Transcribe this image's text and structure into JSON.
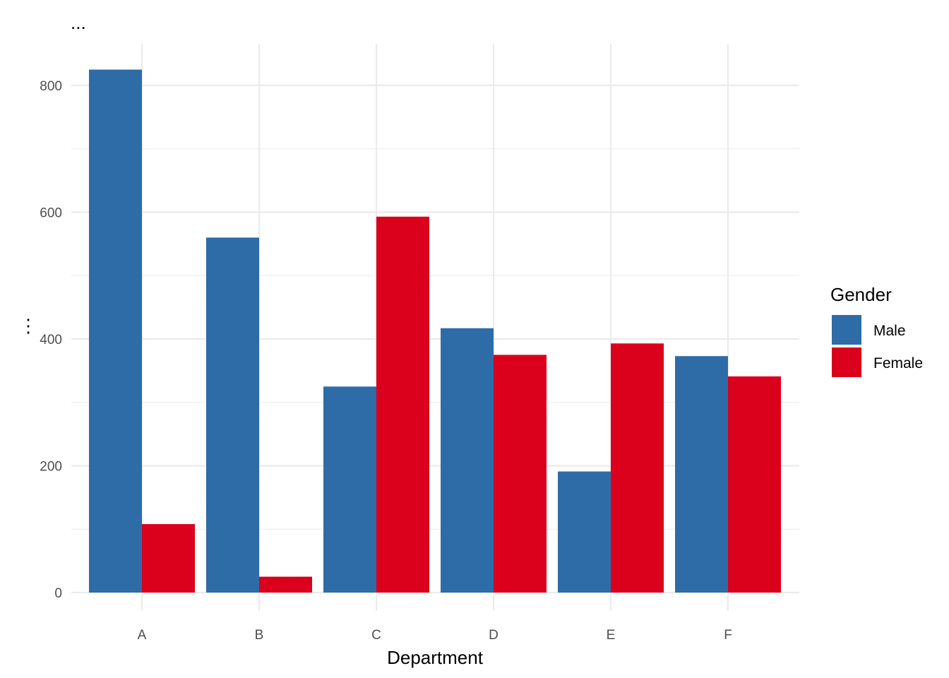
{
  "chart_data": {
    "type": "bar",
    "title": "...",
    "xlabel": "Department",
    "ylabel": "⋮",
    "categories": [
      "A",
      "B",
      "C",
      "D",
      "E",
      "F"
    ],
    "series": [
      {
        "name": "Male",
        "color": "#2e6ca8",
        "values": [
          825,
          560,
          325,
          417,
          191,
          373
        ]
      },
      {
        "name": "Female",
        "color": "#db001b",
        "values": [
          108,
          25,
          593,
          375,
          393,
          341
        ]
      }
    ],
    "ylim": [
      0,
      865
    ],
    "yticks": [
      0,
      200,
      400,
      600,
      800
    ],
    "yticks_minor": [
      100,
      300,
      500,
      700
    ],
    "legend": {
      "title": "Gender",
      "position": "right"
    },
    "grid": true
  }
}
